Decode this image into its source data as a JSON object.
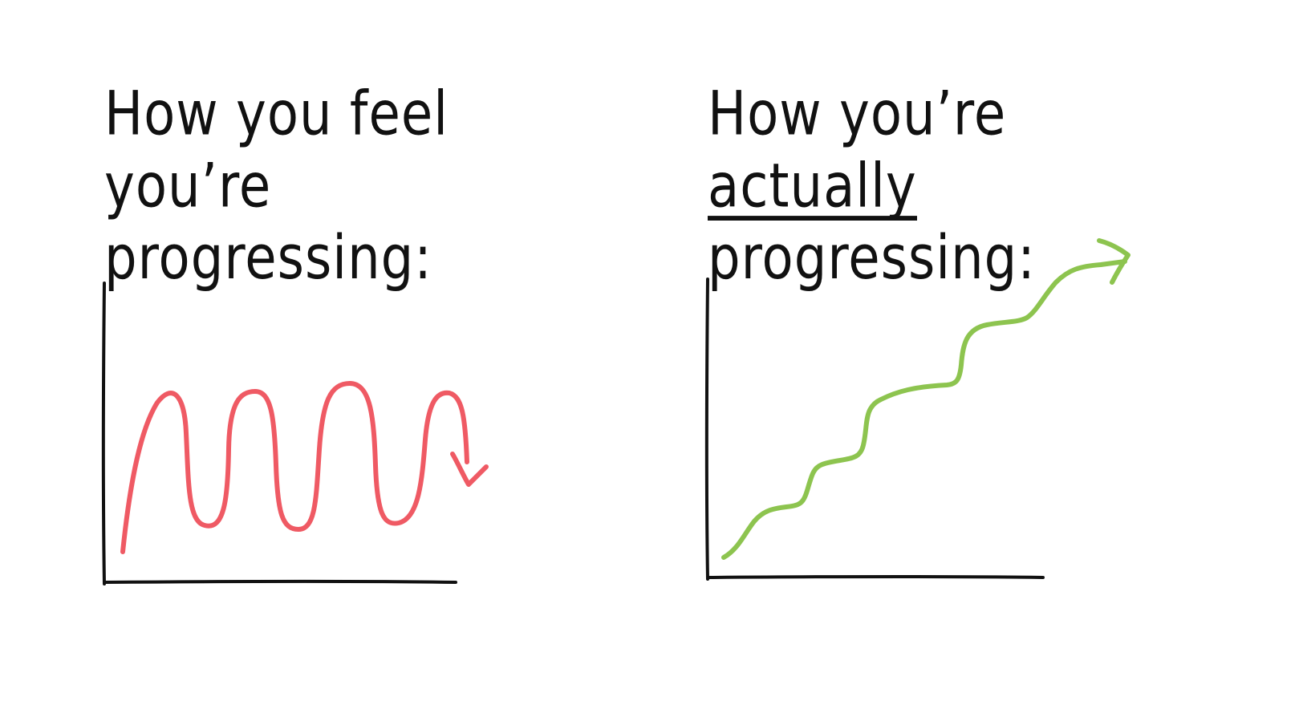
{
  "left_panel": {
    "title_line1": "How you feel you’re",
    "title_line2": "progressing:",
    "curve_color": "#ef5a64",
    "curve_shape": "oscillating wave ending in a downward arrow"
  },
  "right_panel": {
    "title_pre": "How you’re",
    "title_emphasis": "actually",
    "title_line2": "progressing:",
    "curve_color": "#8dc44f",
    "curve_shape": "rising staircase wave ending in a rightward arrow"
  },
  "axis_color": "#111111"
}
